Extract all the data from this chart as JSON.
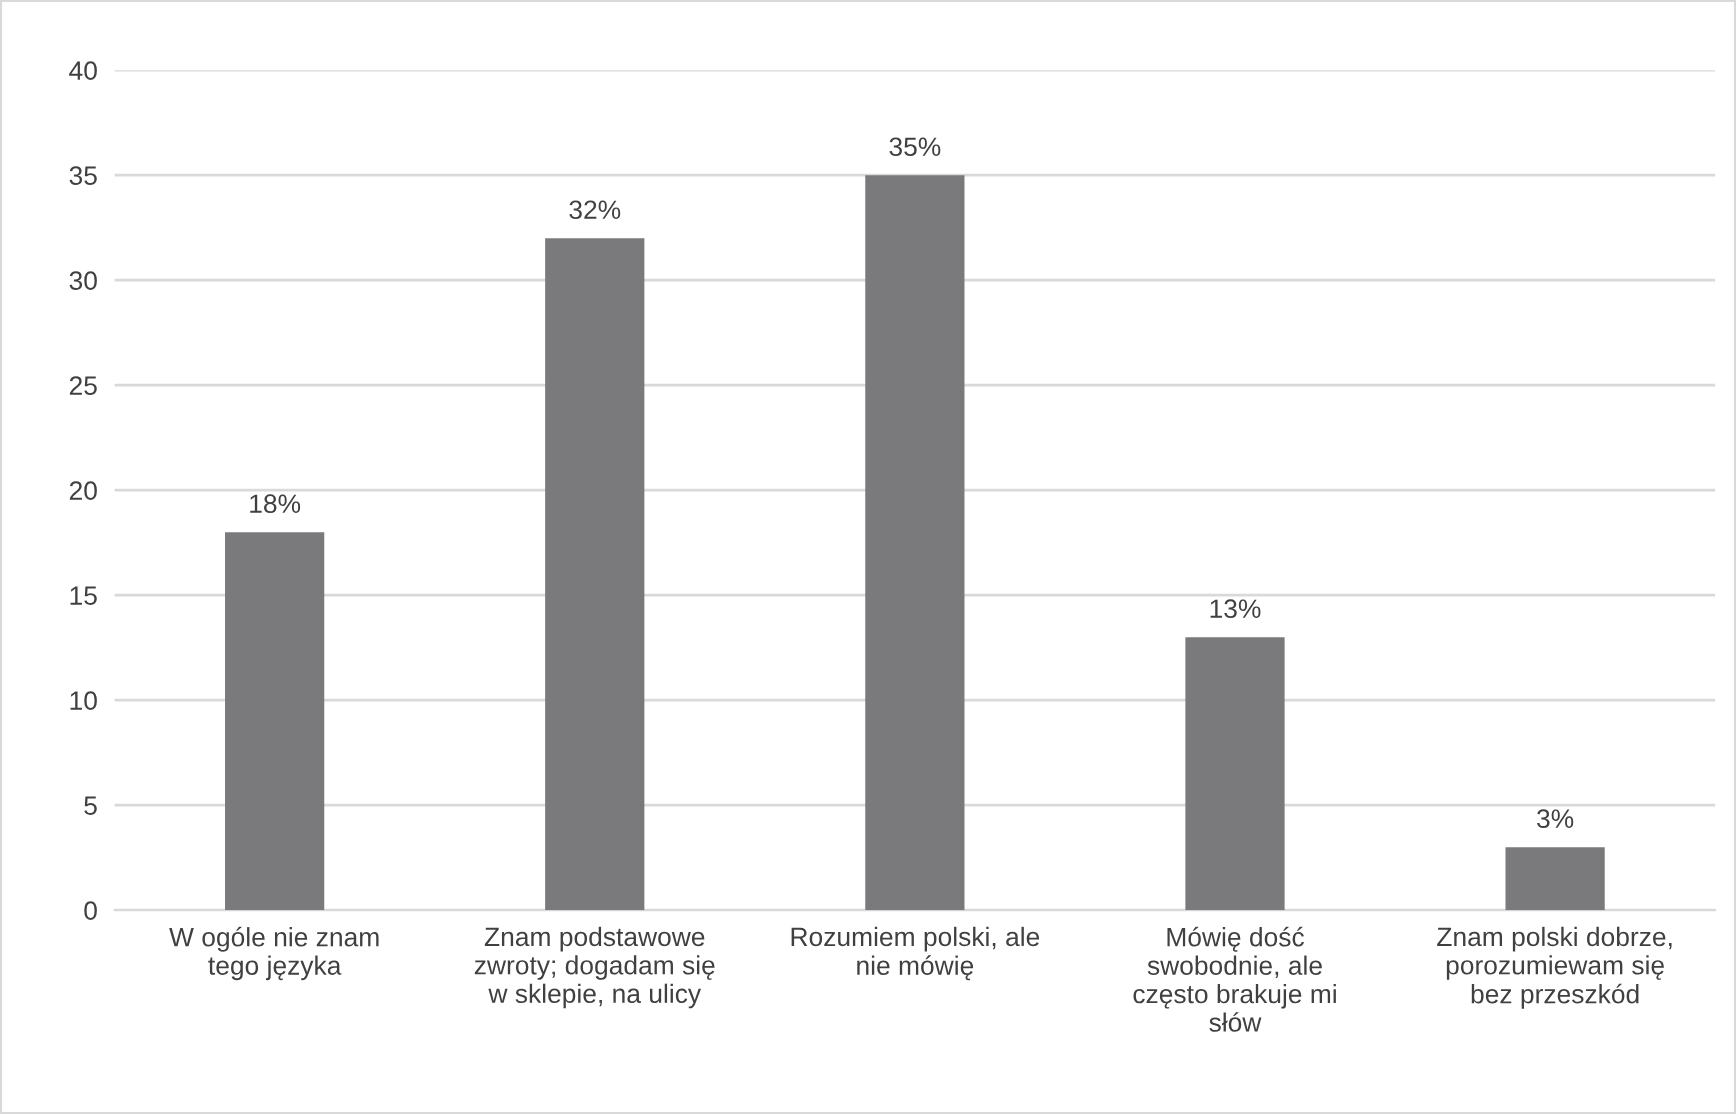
{
  "chart_data": {
    "type": "bar",
    "categories": [
      "W ogóle nie znam\ntego języka",
      "Znam podstawowe\nzwroty; dogadam się\nw sklepie, na ulicy",
      "Rozumiem polski, ale\nnie mówię",
      "Mówię dość\nswobodnie, ale\nczęsto brakuje mi\nsłów",
      "Znam polski dobrze,\nporozumiewam się\nbez przeszkód"
    ],
    "values": [
      18,
      32,
      35,
      13,
      3
    ],
    "value_labels": [
      "18%",
      "32%",
      "35%",
      "13%",
      "3%"
    ],
    "color": "#7a7a7c",
    "ylim": [
      0,
      40
    ],
    "yticks": [
      0,
      5,
      10,
      15,
      20,
      25,
      30,
      35,
      40
    ],
    "grid": "y",
    "legend": false
  }
}
